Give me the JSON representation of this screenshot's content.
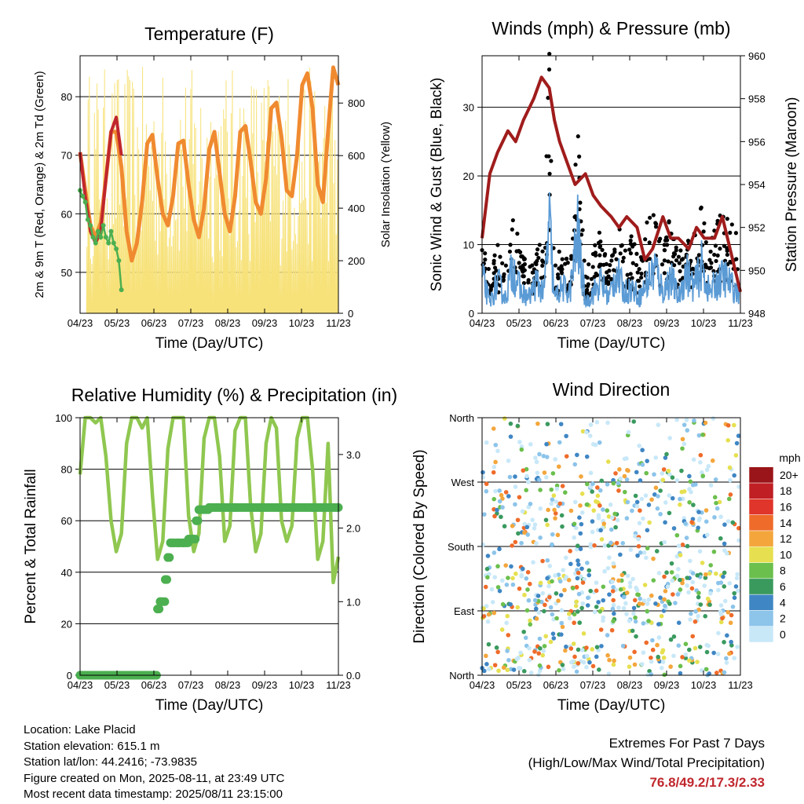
{
  "x_ticks": [
    "04/23",
    "05/23",
    "06/23",
    "07/23",
    "08/23",
    "09/23",
    "10/23",
    "11/23"
  ],
  "chart_data": [
    {
      "type": "line",
      "title": "Temperature (F)",
      "xlabel": "Time (Day/UTC)",
      "ylabel": "2m & 9m T (Red, Orange) & 2m Td (Green)",
      "ylabel_right": "Solar Insolation (Yellow)",
      "ylim": [
        43,
        87
      ],
      "yticks": [
        50,
        60,
        70,
        80
      ],
      "ylim_right": [
        0,
        980
      ],
      "yticks_right": [
        0,
        200,
        400,
        600,
        800
      ],
      "series": [
        {
          "color": "#f08a30",
          "x": [
            0,
            0.2,
            0.4,
            0.6,
            0.8,
            1,
            1.2,
            1.4,
            1.6,
            1.8,
            2,
            2.2,
            2.4,
            2.6,
            2.8,
            3,
            3.2,
            3.4,
            3.6,
            3.8,
            4,
            4.2,
            4.4,
            4.6,
            4.8,
            5,
            5.2,
            5.4,
            5.6,
            5.8,
            6,
            6.2,
            6.4,
            6.6,
            6.8,
            7,
            7.2,
            7.4,
            7.6,
            7.8,
            8,
            8.2,
            8.4,
            8.6,
            8.8,
            9,
            9.2,
            9.4,
            9.6,
            9.8,
            10
          ],
          "values": [
            70.5,
            64,
            58,
            56,
            58.5,
            66,
            74,
            74,
            68,
            57,
            52,
            55,
            62,
            72,
            73.5,
            66,
            60,
            58,
            63,
            72,
            72.5,
            65,
            59,
            56,
            61,
            71,
            74,
            67,
            60,
            57,
            63,
            74,
            75,
            69,
            62,
            60,
            66,
            78,
            79,
            73,
            64,
            63,
            70,
            82,
            84,
            78,
            65,
            62,
            74,
            85,
            82
          ]
        },
        {
          "color": "#c0272d",
          "x": [
            0,
            0.2,
            0.4,
            0.6,
            0.8,
            1,
            1.2,
            1.4,
            1.6
          ],
          "values": [
            70.5,
            63,
            57,
            55,
            57,
            66,
            74,
            76.5,
            70
          ]
        },
        {
          "color": "#4caf50",
          "x": [
            0,
            0.1,
            0.2,
            0.3,
            0.4,
            0.5,
            0.6,
            0.7,
            0.8,
            0.9,
            1,
            1.1,
            1.2,
            1.3,
            1.4,
            1.5,
            1.6
          ],
          "values": [
            64,
            63,
            62,
            59,
            58,
            56,
            55,
            57,
            56,
            58,
            56,
            55,
            57,
            55,
            54,
            52,
            47
          ]
        }
      ]
    },
    {
      "type": "line",
      "title": "Winds (mph) & Pressure (mb)",
      "xlabel": "Time (Day/UTC)",
      "ylabel": "Sonic Wind & Gust (Blue, Black)",
      "ylabel_right": "Station Pressure (Maroon)",
      "ylim": [
        0,
        37.5
      ],
      "yticks": [
        0,
        10,
        20,
        30
      ],
      "ylim_right": [
        948,
        960
      ],
      "yticks_right": [
        948,
        950,
        952,
        954,
        956,
        958,
        960
      ],
      "series": [
        {
          "name": "pressure",
          "color": "#a01c1c",
          "x": [
            0,
            0.3,
            0.6,
            1,
            1.3,
            1.6,
            2,
            2.3,
            2.6,
            2.8,
            3,
            3.3,
            3.6,
            4,
            4.3,
            4.6,
            5,
            5.3,
            5.6,
            6,
            6.3,
            6.6,
            7,
            7.3,
            7.6,
            8,
            8.3,
            8.6,
            9,
            9.3,
            9.6,
            10
          ],
          "values": [
            951.5,
            954.5,
            955.5,
            956.5,
            956,
            957,
            958,
            959,
            958.5,
            957,
            956,
            955,
            954,
            954.5,
            953.5,
            953,
            952.5,
            952,
            952.5,
            952,
            950.5,
            951,
            952.5,
            951.5,
            951.5,
            951,
            952,
            951.5,
            951.5,
            952.5,
            951,
            949
          ]
        },
        {
          "name": "wind",
          "color": "#5b9bd5",
          "x": [
            0,
            0.3,
            0.6,
            0.9,
            1.2,
            1.5,
            1.8,
            2.1,
            2.4,
            2.6,
            2.8,
            3.1,
            3.4,
            3.7,
            4,
            4.3,
            4.6,
            4.9,
            5.2,
            5.5,
            5.8,
            6.1,
            6.4,
            6.7,
            7,
            7.3,
            7.6,
            7.9,
            8.2,
            8.5,
            8.8,
            9.1,
            9.4,
            9.7,
            10
          ],
          "values": [
            7,
            2,
            6,
            3,
            9,
            4,
            3,
            6,
            4,
            17,
            3,
            5,
            4,
            15,
            2,
            4,
            6,
            3,
            8,
            4,
            5,
            3,
            6,
            9,
            4,
            7,
            3,
            8,
            5,
            9,
            4,
            6,
            7,
            5,
            4
          ]
        },
        {
          "name": "gust",
          "color": "#000000",
          "x": [
            0,
            0.3,
            0.6,
            0.9,
            1.2,
            1.5,
            1.8,
            2.1,
            2.4,
            2.6,
            2.8,
            3.1,
            3.4,
            3.7,
            4,
            4.3,
            4.6,
            4.9,
            5.2,
            5.5,
            5.8,
            6.1,
            6.4,
            6.7,
            7,
            7.3,
            7.6,
            7.9,
            8.2,
            8.5,
            8.8,
            9.1,
            9.4,
            9.7,
            10
          ],
          "values": [
            10,
            5,
            9,
            6,
            14,
            8,
            6,
            10,
            8,
            35.5,
            6,
            9,
            8,
            24,
            5,
            8,
            11,
            6,
            13,
            8,
            10,
            7,
            12,
            14,
            8,
            13,
            7,
            13,
            10,
            14,
            9,
            12,
            14,
            12,
            8
          ]
        }
      ]
    },
    {
      "type": "line",
      "title": "Relative Humidity (%) & Precipitation (in)",
      "xlabel": "Time (Day/UTC)",
      "ylabel": "Percent & Total Rainfall",
      "ylim": [
        0,
        100
      ],
      "yticks": [
        0,
        20,
        40,
        60,
        80,
        100
      ],
      "ylim_right": [
        0,
        3.5
      ],
      "yticks_right": [
        "0.0",
        "1.0",
        "2.0",
        "3.0"
      ],
      "series": [
        {
          "name": "rh",
          "color": "#8fc750",
          "x": [
            0,
            0.2,
            0.4,
            0.6,
            0.8,
            1,
            1.2,
            1.4,
            1.6,
            1.8,
            2,
            2.2,
            2.4,
            2.6,
            2.8,
            3,
            3.2,
            3.4,
            3.6,
            3.8,
            4,
            4.2,
            4.4,
            4.6,
            4.8,
            5,
            5.2,
            5.4,
            5.6,
            5.8,
            6,
            6.2,
            6.4,
            6.6,
            6.8,
            7,
            7.2,
            7.4,
            7.6,
            7.8,
            8,
            8.2,
            8.4,
            8.6,
            8.8,
            9,
            9.2,
            9.4,
            9.6,
            9.8,
            10
          ],
          "values": [
            78,
            100,
            100,
            98,
            100,
            85,
            60,
            48,
            55,
            90,
            100,
            100,
            96,
            100,
            70,
            45,
            52,
            88,
            100,
            100,
            100,
            62,
            48,
            55,
            92,
            100,
            100,
            85,
            52,
            58,
            95,
            100,
            100,
            66,
            48,
            55,
            90,
            100,
            96,
            60,
            52,
            58,
            92,
            100,
            100,
            80,
            45,
            52,
            90,
            36,
            46
          ]
        },
        {
          "name": "precip",
          "color": "#4caf50",
          "x": [
            0,
            0.5,
            1,
            1.5,
            2,
            2.5,
            2.9,
            3.0,
            3.1,
            3.3,
            3.4,
            3.5,
            3.6,
            3.8,
            4,
            4.2,
            4.4,
            4.5,
            4.6,
            5,
            6,
            7,
            8,
            9,
            10
          ],
          "values": [
            0,
            0,
            0,
            0,
            0,
            0,
            0,
            0.9,
            1.0,
            1.3,
            1.6,
            1.8,
            1.8,
            1.8,
            1.8,
            1.85,
            1.85,
            2.1,
            2.25,
            2.28,
            2.28,
            2.28,
            2.28,
            2.28,
            2.28
          ]
        }
      ]
    },
    {
      "type": "scatter",
      "title": "Wind Direction",
      "xlabel": "Time (Day/UTC)",
      "ylabel": "Direction (Colored By Speed)",
      "yticks": [
        "North",
        "East",
        "South",
        "West",
        "North"
      ],
      "legend_title": "mph",
      "legend_labels": [
        "0",
        "2",
        "4",
        "6",
        "8",
        "10",
        "12",
        "14",
        "16",
        "18",
        "20+"
      ],
      "legend_colors": [
        "#c8e8f8",
        "#8cc4ea",
        "#3f86c4",
        "#3a9a5e",
        "#6bbf4d",
        "#e6e050",
        "#f4a63c",
        "#ef6b2a",
        "#e0352a",
        "#c01f24",
        "#9a1519"
      ]
    }
  ],
  "info": {
    "location": "Location: Lake Placid",
    "elevation": "Station elevation: 615.1 m",
    "latlon": "Station lat/lon: 44.2416; -73.9835",
    "created": "Figure created on Mon, 2025-08-11, at 23:49 UTC",
    "recent": "Most recent data timestamp: 2025/08/11 23:15:00"
  },
  "extremes": {
    "title": "Extremes For Past 7 Days",
    "subtitle": "(High/Low/Max Wind/Total Precipitation)",
    "values": "76.8/49.2/17.3/2.33"
  }
}
